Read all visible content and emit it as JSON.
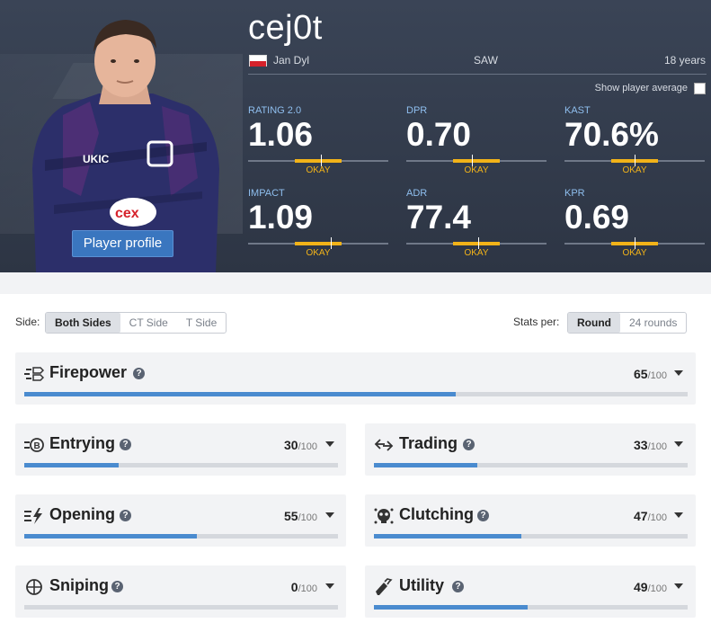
{
  "player": {
    "nickname": "cej0t",
    "real_name": "Jan Dyl",
    "team": "SAW",
    "age": "18 years",
    "profile_button": "Player profile",
    "show_average_label": "Show player average"
  },
  "colors": {
    "accent": "#3a76bf",
    "rating_okay": "#f2b319",
    "bar_fill": "#4a8bcf"
  },
  "stats": [
    {
      "label": "RATING 2.0",
      "value": "1.06",
      "rating": "OKAY"
    },
    {
      "label": "DPR",
      "value": "0.70",
      "rating": "OKAY"
    },
    {
      "label": "KAST",
      "value": "70.6%",
      "rating": "OKAY"
    },
    {
      "label": "IMPACT",
      "value": "1.09",
      "rating": "OKAY"
    },
    {
      "label": "ADR",
      "value": "77.4",
      "rating": "OKAY"
    },
    {
      "label": "KPR",
      "value": "0.69",
      "rating": "OKAY"
    }
  ],
  "side_filter": {
    "label": "Side:",
    "options": [
      "Both Sides",
      "CT Side",
      "T Side"
    ],
    "selected": "Both Sides"
  },
  "stats_per": {
    "label": "Stats per:",
    "options": [
      "Round",
      "24 rounds"
    ],
    "selected": "Round"
  },
  "categories": [
    {
      "name": "Firepower",
      "score": "65",
      "max": "/100",
      "icon": "firepower-icon"
    },
    {
      "name": "Entrying",
      "score": "30",
      "max": "/100",
      "icon": "entrying-icon"
    },
    {
      "name": "Trading",
      "score": "33",
      "max": "/100",
      "icon": "trading-icon"
    },
    {
      "name": "Opening",
      "score": "55",
      "max": "/100",
      "icon": "opening-icon"
    },
    {
      "name": "Clutching",
      "score": "47",
      "max": "/100",
      "icon": "clutching-icon"
    },
    {
      "name": "Sniping",
      "score": "0",
      "max": "/100",
      "icon": "sniping-icon"
    },
    {
      "name": "Utility",
      "score": "49",
      "max": "/100",
      "icon": "utility-icon"
    }
  ]
}
